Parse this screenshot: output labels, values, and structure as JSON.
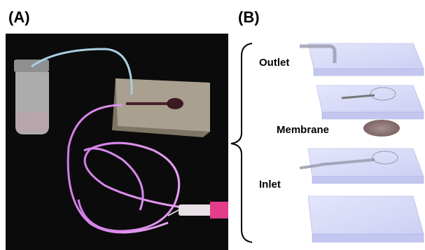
{
  "panels": [
    {
      "label": "(A)"
    },
    {
      "label": "(B)",
      "layers": [
        {
          "label": "Outlet"
        },
        {
          "label": "Membrane"
        },
        {
          "label": "Inlet"
        }
      ]
    }
  ]
}
